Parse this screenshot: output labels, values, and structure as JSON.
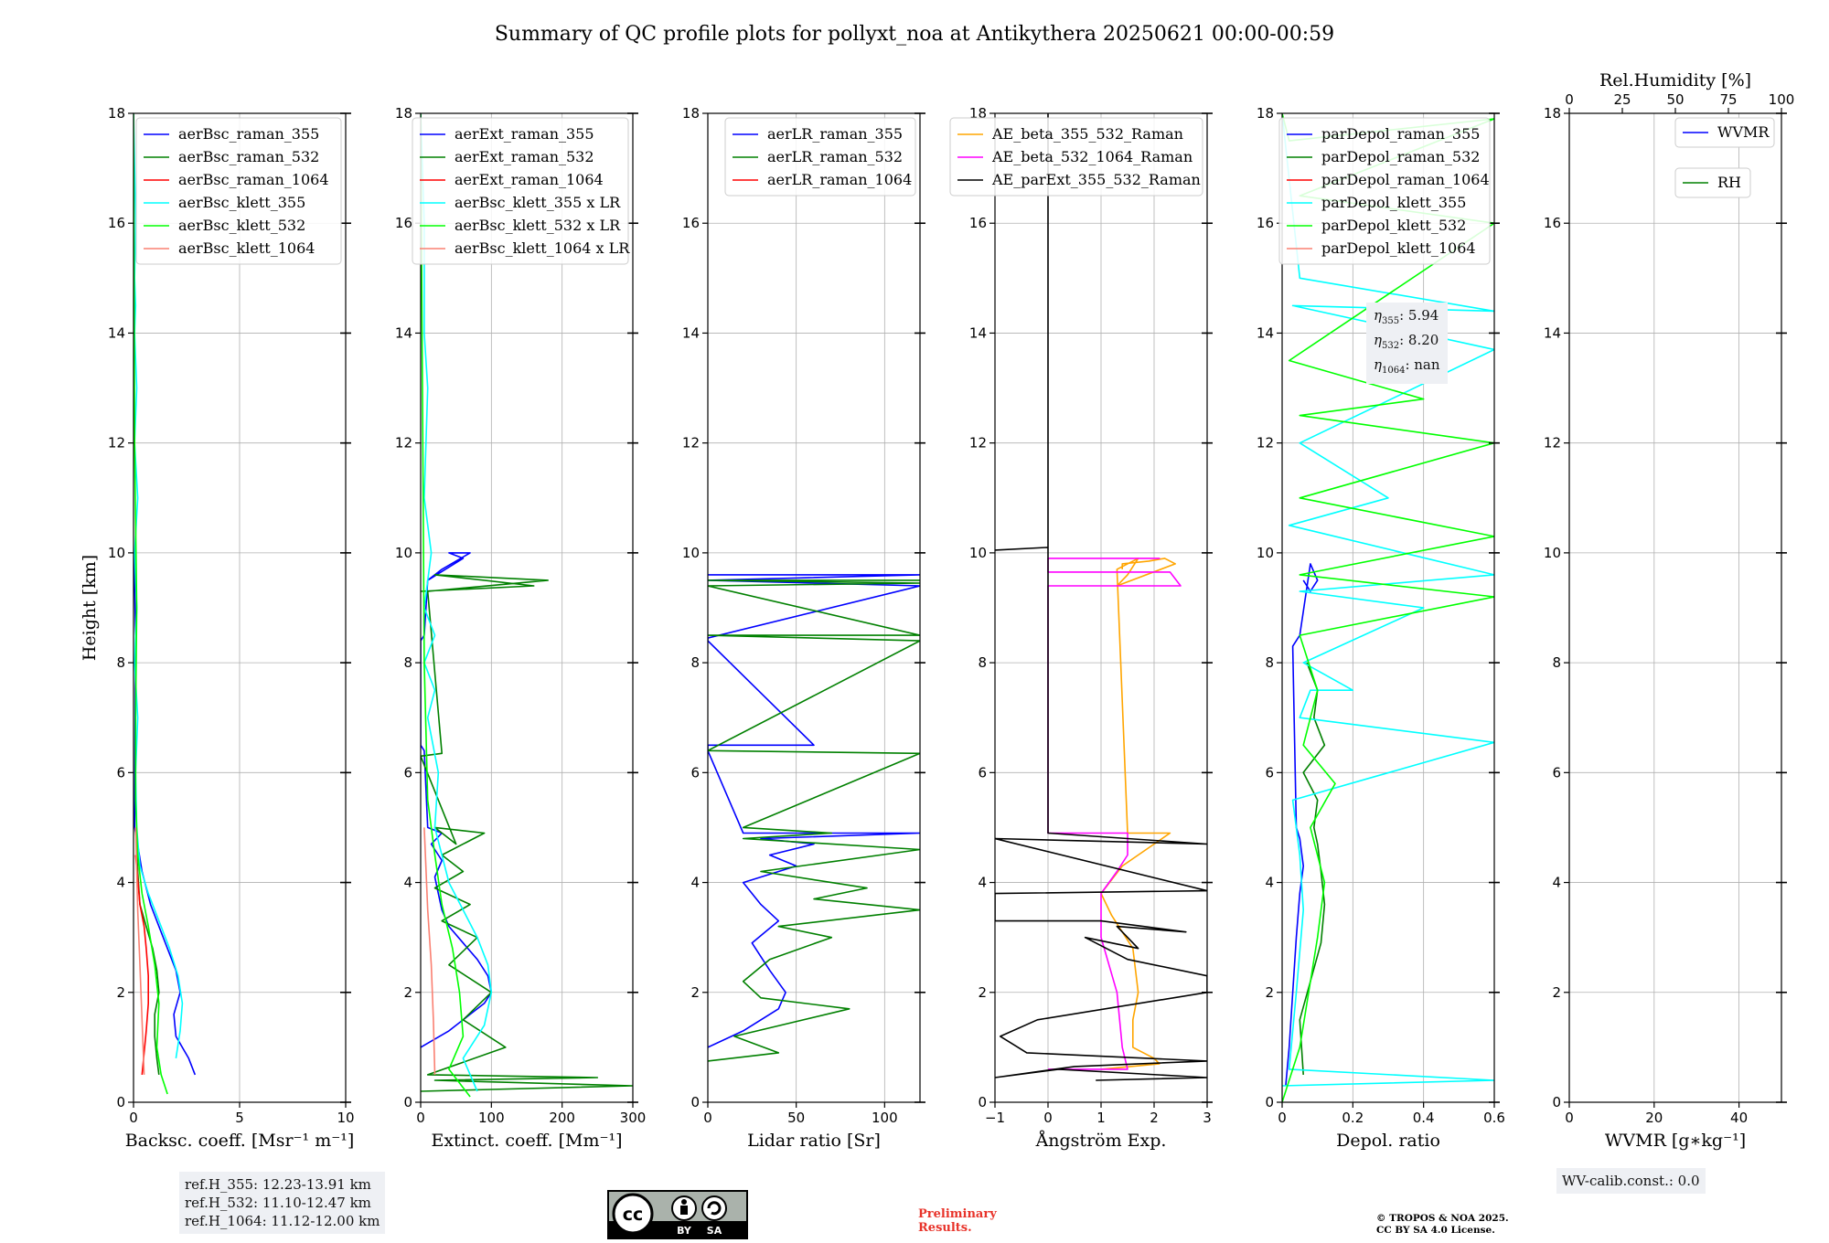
{
  "suptitle": "Summary of QC profile plots for pollyxt_noa at Antikythera 20250621 00:00-00:59",
  "ref_heights": [
    "ref.H_355: 12.23-13.91 km",
    "ref.H_532: 11.10-12.47 km",
    "ref.H_1064: 11.12-12.00 km"
  ],
  "wv_calib": "WV-calib.const.: 0.0",
  "eta_labels": [
    {
      "sym": "η",
      "sub": "355",
      "val": ": 5.94"
    },
    {
      "sym": "η",
      "sub": "532",
      "val": ": 8.20"
    },
    {
      "sym": "η",
      "sub": "1064",
      "val": ": nan"
    }
  ],
  "license_badge": {
    "cc": "cc",
    "by": "BY",
    "sa": "SA"
  },
  "preliminary": [
    "Preliminary",
    "Results."
  ],
  "copyright": [
    "© TROPOS & NOA 2025.",
    "CC BY SA 4.0 License."
  ],
  "colors": {
    "blue": "#0000ff",
    "green": "#008000",
    "red": "#ff0000",
    "cyan": "#00ffff",
    "lime": "#00ff00",
    "salmon": "#fa8072",
    "orange": "#ffa500",
    "magenta": "#ff00ff",
    "black": "#000000"
  },
  "chart_data": [
    {
      "type": "line",
      "xlabel": "Backsc. coeff. [Msr⁻¹ m⁻¹]",
      "ylabel": "Height [km]",
      "xlim": [
        0,
        10
      ],
      "ylim": [
        0,
        18
      ],
      "xticks": [
        0,
        5,
        10
      ],
      "yticks": [
        0,
        2,
        4,
        6,
        8,
        10,
        12,
        14,
        16,
        18
      ],
      "legend_loc": "upper right",
      "series": [
        {
          "name": "aerBsc_raman_355",
          "color": "#0000ff",
          "x": [
            2.9,
            2.6,
            2.0,
            1.9,
            2.2,
            2.0,
            1.6,
            1.2,
            0.8,
            0.4,
            0.15,
            0.05,
            0.1,
            0.05,
            0.05,
            0.05
          ],
          "y": [
            0.5,
            0.8,
            1.2,
            1.6,
            2.0,
            2.4,
            2.8,
            3.2,
            3.6,
            4.2,
            4.8,
            5.0,
            8.5,
            9.4,
            9.7,
            10.0
          ]
        },
        {
          "name": "aerBsc_raman_532",
          "color": "#008000",
          "x": [
            1.2,
            1.1,
            1.0,
            1.0,
            1.2,
            1.1,
            0.9,
            0.6,
            0.3,
            0.2,
            0.1
          ],
          "y": [
            0.5,
            0.8,
            1.2,
            1.6,
            2.0,
            2.4,
            2.8,
            3.2,
            3.6,
            4.2,
            5.0
          ]
        },
        {
          "name": "aerBsc_raman_1064",
          "color": "#ff0000",
          "x": [
            0.4,
            0.5,
            0.6,
            0.7,
            0.7,
            0.6,
            0.5,
            0.3,
            0.1
          ],
          "y": [
            0.5,
            0.9,
            1.3,
            1.8,
            2.3,
            2.8,
            3.2,
            3.6,
            4.5
          ]
        },
        {
          "name": "aerBsc_klett_355",
          "color": "#00ffff",
          "x": [
            2.0,
            2.2,
            2.3,
            2.1,
            1.7,
            1.2,
            0.7,
            0.3,
            0.15,
            0.1,
            0.2,
            0.05,
            0.15,
            0.05,
            0.2,
            0.05,
            0.15,
            0.05,
            0.1,
            0.05,
            0.1,
            0.05,
            0.0
          ],
          "y": [
            0.8,
            1.3,
            1.8,
            2.3,
            2.8,
            3.3,
            3.8,
            4.3,
            5.0,
            6.0,
            7.0,
            8.0,
            9.0,
            10.0,
            11.0,
            12.0,
            13.0,
            14.0,
            14.5,
            15.0,
            16.0,
            17.0,
            18.0
          ]
        },
        {
          "name": "aerBsc_klett_532",
          "color": "#00ff00",
          "x": [
            1.6,
            1.3,
            1.1,
            1.2,
            1.0,
            0.7,
            0.4,
            0.2,
            0.1,
            0.1,
            0.15,
            0.05,
            0.0
          ],
          "y": [
            0.15,
            0.5,
            1.0,
            1.8,
            2.5,
            3.2,
            3.8,
            4.5,
            5.5,
            7.0,
            9.0,
            12.0,
            18.0
          ]
        },
        {
          "name": "aerBsc_klett_1064",
          "color": "#fa8072",
          "x": [
            0.5,
            0.4,
            0.3,
            0.2,
            0.1
          ],
          "y": [
            0.5,
            1.5,
            2.5,
            3.5,
            5.0
          ]
        }
      ]
    },
    {
      "type": "line",
      "xlabel": "Extinct. coeff. [Mm⁻¹]",
      "ylabel": "",
      "xlim": [
        0,
        300
      ],
      "ylim": [
        0,
        18
      ],
      "xticks": [
        0,
        100,
        200,
        300
      ],
      "yticks": [
        0,
        2,
        4,
        6,
        8,
        10,
        12,
        14,
        16,
        18
      ],
      "legend_loc": "upper right",
      "series": [
        {
          "name": "aerExt_raman_355",
          "color": "#0000ff",
          "x": [
            0,
            40,
            70,
            90,
            100,
            95,
            80,
            60,
            40,
            30,
            25,
            20,
            30,
            15,
            30,
            10,
            5,
            0,
            0,
            5,
            10,
            60,
            40,
            70,
            30,
            10
          ],
          "y": [
            1.0,
            1.3,
            1.6,
            1.8,
            2.0,
            2.3,
            2.6,
            2.9,
            3.2,
            3.5,
            3.8,
            4.1,
            4.4,
            4.7,
            4.9,
            5.0,
            6.4,
            6.5,
            8.4,
            8.5,
            9.5,
            9.9,
            10.0,
            10.0,
            9.7,
            9.5
          ]
        },
        {
          "name": "aerExt_raman_532",
          "color": "#008000",
          "x": [
            0,
            300,
            20,
            250,
            10,
            120,
            60,
            100,
            40,
            80,
            30,
            70,
            20,
            60,
            30,
            90,
            20,
            50,
            0,
            30,
            10,
            180,
            20,
            160,
            0
          ],
          "y": [
            0.2,
            0.3,
            0.4,
            0.45,
            0.5,
            1.0,
            1.5,
            2.0,
            2.5,
            3.0,
            3.3,
            3.6,
            3.9,
            4.2,
            4.5,
            4.9,
            5.0,
            4.7,
            6.3,
            6.35,
            9.3,
            9.5,
            9.6,
            9.4,
            9.3
          ]
        },
        {
          "name": "aerExt_raman_1064",
          "color": "#ff0000",
          "x": [],
          "y": []
        },
        {
          "name": "aerBsc_klett_355 x LR",
          "color": "#00ffff",
          "x": [
            80,
            60,
            90,
            100,
            95,
            80,
            60,
            40,
            30,
            20,
            25,
            10,
            20,
            5,
            20,
            5,
            15,
            5,
            10,
            5,
            5,
            0
          ],
          "y": [
            0.2,
            0.8,
            1.4,
            2.0,
            2.5,
            3.0,
            3.5,
            4.0,
            4.5,
            5.0,
            6.0,
            7.0,
            7.5,
            8.0,
            8.5,
            9.0,
            10.0,
            11.0,
            13.0,
            14.0,
            16.0,
            18.0
          ]
        },
        {
          "name": "aerBsc_klett_532 x LR",
          "color": "#00ff00",
          "x": [
            70,
            40,
            60,
            55,
            45,
            30,
            20,
            10,
            5,
            0
          ],
          "y": [
            0.1,
            0.6,
            1.2,
            2.0,
            2.8,
            3.6,
            4.5,
            5.5,
            8.0,
            18.0
          ]
        },
        {
          "name": "aerBsc_klett_1064 x LR",
          "color": "#fa8072",
          "x": [
            20,
            18,
            15,
            10,
            5
          ],
          "y": [
            0.5,
            1.5,
            2.5,
            3.5,
            5.0
          ]
        }
      ]
    },
    {
      "type": "line",
      "xlabel": "Lidar ratio [Sr]",
      "ylabel": "",
      "xlim": [
        0,
        120
      ],
      "ylim": [
        0,
        18
      ],
      "xticks": [
        0,
        50,
        100
      ],
      "yticks": [
        0,
        2,
        4,
        6,
        8,
        10,
        12,
        14,
        16,
        18
      ],
      "legend_loc": "upper right",
      "series": [
        {
          "name": "aerLR_raman_355",
          "color": "#0000ff",
          "x": [
            0,
            20,
            40,
            44,
            35,
            25,
            40,
            30,
            20,
            50,
            35,
            60,
            30,
            120,
            20,
            0,
            0,
            60,
            0,
            0,
            120,
            0,
            120,
            0
          ],
          "y": [
            1.0,
            1.3,
            1.7,
            2.0,
            2.4,
            2.9,
            3.3,
            3.6,
            4.0,
            4.3,
            4.5,
            4.7,
            4.8,
            4.9,
            4.9,
            6.4,
            6.5,
            6.5,
            8.4,
            8.45,
            9.4,
            9.5,
            9.6,
            9.6
          ]
        },
        {
          "name": "aerLR_raman_532",
          "color": "#008000",
          "x": [
            0,
            40,
            15,
            80,
            30,
            20,
            35,
            70,
            40,
            120,
            60,
            90,
            30,
            120,
            20,
            70,
            20,
            120,
            0,
            120,
            0,
            120,
            0,
            120,
            0,
            120
          ],
          "y": [
            0.75,
            0.9,
            1.2,
            1.7,
            1.9,
            2.2,
            2.6,
            3.0,
            3.2,
            3.5,
            3.7,
            3.9,
            4.2,
            4.6,
            4.8,
            4.9,
            5.0,
            6.35,
            6.4,
            8.4,
            8.5,
            8.5,
            9.4,
            9.45,
            9.5,
            9.5
          ]
        },
        {
          "name": "aerLR_raman_1064",
          "color": "#ff0000",
          "x": [],
          "y": []
        }
      ]
    },
    {
      "type": "line",
      "xlabel": "Ångström Exp.",
      "ylabel": "",
      "xlim": [
        -1,
        3
      ],
      "ylim": [
        0,
        18
      ],
      "xticks": [
        -1,
        0,
        1,
        2,
        3
      ],
      "yticks": [
        0,
        2,
        4,
        6,
        8,
        10,
        12,
        14,
        16,
        18
      ],
      "legend_loc": "upper right",
      "series": [
        {
          "name": "AE_beta_355_532_Raman",
          "color": "#ffa500",
          "x": [
            1.0,
            2.1,
            2.0,
            1.6,
            1.6,
            1.7,
            1.6,
            1.2,
            1.0,
            1.4,
            2.3,
            1.5,
            1.3,
            1.7,
            1.5,
            1.3,
            2.4,
            2.2,
            1.9,
            1.4,
            1.4
          ],
          "y": [
            0.6,
            0.7,
            0.8,
            1.0,
            1.5,
            2.0,
            2.8,
            3.4,
            3.8,
            4.3,
            4.9,
            4.9,
            9.7,
            9.9,
            9.6,
            9.4,
            9.8,
            9.9,
            9.85,
            9.8,
            9.7
          ]
        },
        {
          "name": "AE_beta_532_1064_Raman",
          "color": "#ff00ff",
          "x": [
            0,
            1.5,
            1.4,
            1.3,
            1.0,
            1.0,
            1.3,
            1.5,
            1.5,
            0,
            0,
            2.5,
            2.3,
            0,
            0,
            2.1,
            0
          ],
          "y": [
            0.6,
            0.6,
            1.0,
            2.0,
            3.0,
            3.8,
            4.2,
            4.5,
            4.9,
            4.9,
            9.4,
            9.4,
            9.65,
            9.65,
            9.9,
            9.9,
            9.9
          ]
        },
        {
          "name": "AE_parExt_355_532_Raman",
          "color": "#000000",
          "x": [
            0.9,
            3,
            0.2,
            -1,
            0.5,
            3,
            -0.4,
            -0.9,
            -0.2,
            3,
            3,
            1.5,
            0.7,
            1.7,
            1.3,
            2.6,
            1.0,
            -1,
            -1,
            3,
            -1,
            3,
            0,
            0,
            -1,
            0,
            0
          ],
          "y": [
            0.4,
            0.45,
            0.6,
            0.45,
            0.65,
            0.75,
            0.9,
            1.2,
            1.5,
            2.0,
            2.3,
            2.6,
            3.0,
            2.8,
            3.2,
            3.1,
            3.3,
            3.3,
            3.8,
            3.85,
            4.8,
            4.7,
            4.9,
            10.1,
            10.05,
            10.1,
            18.0
          ]
        }
      ]
    },
    {
      "type": "line",
      "xlabel": "Depol. ratio",
      "ylabel": "",
      "xlim": [
        0,
        0.6
      ],
      "ylim": [
        0,
        18
      ],
      "xticks": [
        0,
        0.2,
        0.4,
        0.6
      ],
      "yticks": [
        0,
        2,
        4,
        6,
        8,
        10,
        12,
        14,
        16,
        18
      ],
      "legend_loc": "upper right",
      "series": [
        {
          "name": "parDepol_raman_355",
          "color": "#0000ff",
          "x": [
            0.01,
            0.02,
            0.03,
            0.04,
            0.05,
            0.06,
            0.05,
            0.04,
            0.03,
            0.05,
            0.08,
            0.1,
            0.08,
            0.06
          ],
          "y": [
            0.3,
            1.0,
            2.0,
            3.0,
            3.8,
            4.3,
            4.8,
            5.0,
            8.3,
            8.5,
            9.8,
            9.5,
            9.3,
            9.5
          ]
        },
        {
          "name": "parDepol_raman_532",
          "color": "#008000",
          "x": [
            0.06,
            0.05,
            0.08,
            0.11,
            0.12,
            0.11,
            0.1,
            0.09,
            0.1,
            0.06,
            0.12,
            0.09,
            0.1,
            0.07
          ],
          "y": [
            0.5,
            1.5,
            2.2,
            2.9,
            3.6,
            4.2,
            4.7,
            5.0,
            5.5,
            6.0,
            6.5,
            7.0,
            7.5,
            8.0
          ]
        },
        {
          "name": "parDepol_raman_1064",
          "color": "#ff0000",
          "x": [],
          "y": []
        },
        {
          "name": "parDepol_klett_355",
          "color": "#00ffff",
          "x": [
            0.0,
            0.6,
            0.02,
            0.04,
            0.06,
            0.05,
            0.03,
            0.6,
            0.05,
            0.08,
            0.2,
            0.06,
            0.4,
            0.05,
            0.6,
            0.02,
            0.3,
            0.05,
            0.6,
            0.03,
            0.6,
            0.05,
            0.0
          ],
          "y": [
            0.3,
            0.4,
            0.6,
            2.0,
            3.5,
            4.5,
            5.5,
            6.55,
            7.0,
            7.5,
            7.5,
            8.0,
            9.0,
            9.3,
            9.6,
            10.5,
            11.0,
            12.0,
            13.7,
            14.5,
            14.4,
            15.0,
            18.0
          ]
        },
        {
          "name": "parDepol_klett_532",
          "color": "#00ff00",
          "x": [
            0.0,
            0.05,
            0.1,
            0.12,
            0.08,
            0.15,
            0.06,
            0.1,
            0.05,
            0.6,
            0.05,
            0.6,
            0.05,
            0.6,
            0.05,
            0.4,
            0.02,
            0.6,
            0.05,
            0.6,
            0.02,
            0.0
          ],
          "y": [
            0.0,
            1.0,
            3.0,
            4.0,
            5.0,
            5.8,
            6.5,
            7.5,
            8.5,
            9.2,
            9.6,
            10.3,
            11.0,
            12.0,
            12.5,
            12.8,
            13.5,
            16.0,
            16.5,
            17.9,
            17.5,
            18.0
          ]
        },
        {
          "name": "parDepol_klett_1064",
          "color": "#fa8072",
          "x": [],
          "y": []
        }
      ]
    },
    {
      "type": "line",
      "xlabel": "WVMR [g∗kg⁻¹]",
      "ylabel": "",
      "x2label": "Rel.Humidity [%]",
      "xlim": [
        0,
        50
      ],
      "ylim": [
        0,
        18
      ],
      "xticks": [
        0,
        20,
        40
      ],
      "yticks": [
        0,
        2,
        4,
        6,
        8,
        10,
        12,
        14,
        16,
        18
      ],
      "x2lim": [
        0,
        100
      ],
      "x2ticks": [
        0,
        25,
        50,
        75,
        100
      ],
      "legend_loc": "upper right",
      "series": [
        {
          "name": "WVMR",
          "color": "#0000ff",
          "x": [],
          "y": []
        },
        {
          "name": "RH",
          "color": "#008000",
          "x": [],
          "y": []
        }
      ]
    }
  ]
}
